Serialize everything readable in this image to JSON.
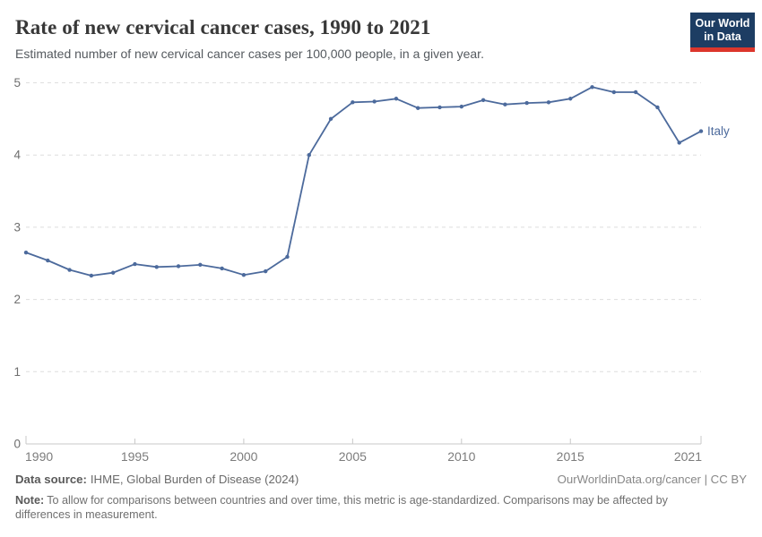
{
  "header": {
    "title": "Rate of new cervical cancer cases, 1990 to 2021",
    "subtitle": "Estimated number of new cervical cancer cases per 100,000 people, in a given year.",
    "logo": {
      "line1": "Our World",
      "line2": "in Data",
      "bg_color": "#1d3d63",
      "accent_color": "#dc362c"
    }
  },
  "chart_data": {
    "type": "line",
    "title": "Rate of new cervical cancer cases, 1990 to 2021",
    "subtitle": "Estimated number of new cervical cancer cases per 100,000 people, in a given year.",
    "x": [
      1990,
      1991,
      1992,
      1993,
      1994,
      1995,
      1996,
      1997,
      1998,
      1999,
      2000,
      2001,
      2002,
      2003,
      2004,
      2005,
      2006,
      2007,
      2008,
      2009,
      2010,
      2011,
      2012,
      2013,
      2014,
      2015,
      2016,
      2017,
      2018,
      2019,
      2020,
      2021
    ],
    "series": [
      {
        "name": "Italy",
        "color": "#4c6a9c",
        "values": [
          2.65,
          2.54,
          2.41,
          2.33,
          2.37,
          2.49,
          2.45,
          2.46,
          2.48,
          2.43,
          2.34,
          2.39,
          2.59,
          4.0,
          4.5,
          4.73,
          4.74,
          4.78,
          4.65,
          4.66,
          4.67,
          4.76,
          4.7,
          4.72,
          4.73,
          4.78,
          4.94,
          4.87,
          4.87,
          4.66,
          4.17,
          4.33
        ]
      }
    ],
    "entity_label": "Italy",
    "ylim": [
      0,
      5
    ],
    "yticks": [
      0,
      1,
      2,
      3,
      4,
      5
    ],
    "xticks": [
      1990,
      1995,
      2000,
      2005,
      2010,
      2015,
      2021
    ],
    "xlabel": "",
    "ylabel": "",
    "grid": "horizontal-dashed",
    "legend": "line-end-label",
    "marker": "dot"
  },
  "colors": {
    "line": "#4c6a9c",
    "gridline": "#dedede",
    "axis": "#c8c8c8",
    "y_tick_label": "#6e6e6e",
    "x_tick_label": "#7c7c7c"
  },
  "footer": {
    "source_label": "Data source:",
    "source_value": "IHME, Global Burden of Disease (2024)",
    "credit": "OurWorldinData.org/cancer | CC BY",
    "note_label": "Note:",
    "note_value": "To allow for comparisons between countries and over time, this metric is age-standardized. Comparisons may be affected by differences in measurement."
  }
}
